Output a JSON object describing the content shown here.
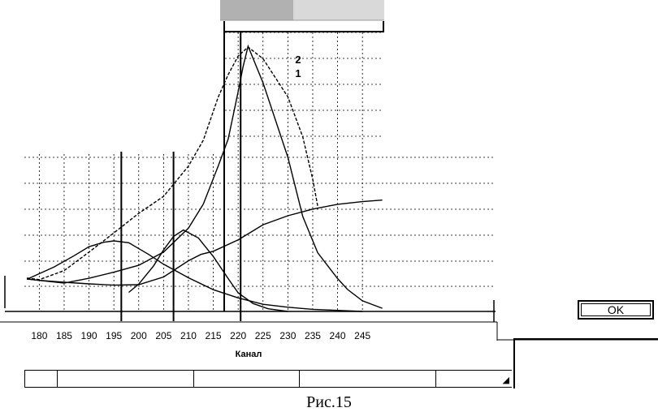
{
  "chart_data": {
    "type": "line",
    "xlabel": "Канал",
    "ylabel": "",
    "xlim": [
      177,
      249
    ],
    "ylim": [
      0,
      1
    ],
    "x_ticks": [
      180,
      185,
      190,
      195,
      200,
      205,
      210,
      215,
      220,
      225,
      230,
      235,
      240,
      245
    ],
    "grid": true,
    "markers": [
      196.5,
      207,
      220.5
    ],
    "marker_labels": [
      "2",
      "1"
    ],
    "series": [
      {
        "values": [
          [
            177.5,
            0.123
          ],
          [
            180,
            0.117
          ],
          [
            185,
            0.11
          ],
          [
            190,
            0.104
          ],
          [
            195,
            0.099
          ],
          [
            200,
            0.101
          ],
          [
            205,
            0.13
          ],
          [
            210,
            0.191
          ],
          [
            212.5,
            0.215
          ],
          [
            215,
            0.227
          ],
          [
            220,
            0.27
          ],
          [
            225,
            0.327
          ],
          [
            230,
            0.361
          ],
          [
            235,
            0.386
          ],
          [
            240,
            0.404
          ],
          [
            245,
            0.414
          ],
          [
            249,
            0.42
          ]
        ]
      },
      {
        "values": [
          [
            177.5,
            0.121
          ],
          [
            183,
            0.168
          ],
          [
            187,
            0.21
          ],
          [
            190,
            0.244
          ],
          [
            193,
            0.261
          ],
          [
            195,
            0.266
          ],
          [
            198,
            0.259
          ],
          [
            202,
            0.215
          ],
          [
            205,
            0.178
          ],
          [
            210,
            0.127
          ],
          [
            215,
            0.082
          ],
          [
            220,
            0.051
          ],
          [
            225,
            0.027
          ],
          [
            230,
            0.016
          ],
          [
            235,
            0.008
          ],
          [
            240,
            0.004
          ],
          [
            245,
            0
          ]
        ]
      },
      {
        "values": [
          [
            198,
            0.072
          ],
          [
            200,
            0.103
          ],
          [
            203,
            0.172
          ],
          [
            205,
            0.232
          ],
          [
            207,
            0.283
          ],
          [
            209,
            0.307
          ],
          [
            212,
            0.277
          ],
          [
            215,
            0.207
          ],
          [
            218,
            0.124
          ],
          [
            220,
            0.07
          ],
          [
            223,
            0.03
          ],
          [
            226,
            0.01
          ],
          [
            230,
            0
          ]
        ]
      },
      {
        "values": [
          [
            177.5,
            0.122
          ],
          [
            185,
            0.107
          ],
          [
            190,
            0.125
          ],
          [
            195,
            0.148
          ],
          [
            200,
            0.174
          ],
          [
            205,
            0.224
          ],
          [
            210,
            0.314
          ],
          [
            213,
            0.405
          ],
          [
            216,
            0.549
          ],
          [
            218,
            0.65
          ],
          [
            220,
            0.829
          ],
          [
            221,
            0.924
          ],
          [
            222,
            1.0
          ],
          [
            225,
            0.862
          ],
          [
            230,
            0.581
          ],
          [
            233,
            0.358
          ],
          [
            236,
            0.221
          ],
          [
            240,
            0.124
          ],
          [
            242,
            0.083
          ],
          [
            245,
            0.04
          ],
          [
            249,
            0.012
          ]
        ]
      },
      {
        "values": [
          [
            177.5,
            0.126
          ],
          [
            180,
            0.12
          ],
          [
            185,
            0.154
          ],
          [
            190,
            0.224
          ],
          [
            195,
            0.296
          ],
          [
            200,
            0.37
          ],
          [
            205,
            0.434
          ],
          [
            210,
            0.548
          ],
          [
            213,
            0.646
          ],
          [
            216,
            0.809
          ],
          [
            218,
            0.893
          ],
          [
            220,
            0.963
          ],
          [
            222,
            0.997
          ],
          [
            225,
            0.953
          ],
          [
            230,
            0.809
          ],
          [
            233,
            0.658
          ],
          [
            235,
            0.498
          ],
          [
            236,
            0.397
          ]
        ]
      }
    ]
  },
  "ui": {
    "ok_label": "OK",
    "caption": "Рис.15"
  }
}
